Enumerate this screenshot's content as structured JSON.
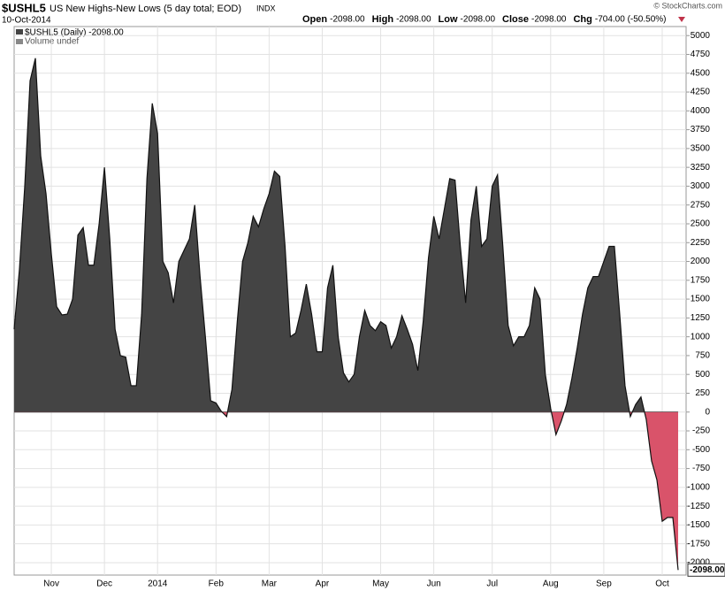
{
  "chart_data": {
    "type": "area",
    "symbol": "$USHL5",
    "title": "US New Highs-New Lows (5 day total; EOD)",
    "exchange": "INDX",
    "date": "10-Oct-2014",
    "quote": [
      {
        "label": "Open",
        "value": "-2098.00"
      },
      {
        "label": "High",
        "value": "-2098.00"
      },
      {
        "label": "Low",
        "value": "-2098.00"
      },
      {
        "label": "Close",
        "value": "-2098.00"
      },
      {
        "label": "Chg",
        "value": "-704.00 (-50.50%)"
      }
    ],
    "source": "© StockCharts.com",
    "legend": [
      "$USHL5 (Daily) -2098.00",
      "Volume undef"
    ],
    "last_label": "-2098.00",
    "categories": [
      null,
      null,
      null,
      null,
      null,
      null,
      null,
      "Nov",
      null,
      null,
      null,
      null,
      null,
      null,
      null,
      null,
      null,
      "Dec",
      null,
      null,
      null,
      null,
      null,
      null,
      null,
      null,
      null,
      "2014",
      null,
      null,
      null,
      null,
      null,
      null,
      null,
      null,
      null,
      null,
      "Feb",
      null,
      null,
      null,
      null,
      null,
      null,
      null,
      null,
      null,
      "Mar",
      null,
      null,
      null,
      null,
      null,
      null,
      null,
      null,
      null,
      "Apr",
      null,
      null,
      null,
      null,
      null,
      null,
      null,
      null,
      null,
      null,
      "May",
      null,
      null,
      null,
      null,
      null,
      null,
      null,
      null,
      null,
      "Jun",
      null,
      null,
      null,
      null,
      null,
      null,
      null,
      null,
      null,
      null,
      "Jul",
      null,
      null,
      null,
      null,
      null,
      null,
      null,
      null,
      null,
      null,
      "Aug",
      null,
      null,
      null,
      null,
      null,
      null,
      null,
      null,
      null,
      "Sep",
      null,
      null,
      null,
      null,
      null,
      null,
      null,
      null,
      null,
      null,
      "Oct",
      null,
      null,
      null
    ],
    "series": [
      {
        "name": "$USHL5",
        "color": "#444444",
        "negative_color": "#d9536a",
        "values": [
          1100,
          1900,
          3000,
          4400,
          4700,
          3400,
          2900,
          2100,
          1400,
          1290,
          1300,
          1500,
          2350,
          2450,
          1950,
          1950,
          2500,
          3250,
          2300,
          1100,
          750,
          730,
          350,
          350,
          1300,
          3100,
          4100,
          3700,
          2000,
          1850,
          1450,
          2000,
          2150,
          2300,
          2750,
          1800,
          1000,
          150,
          120,
          10,
          -60,
          300,
          1200,
          2000,
          2250,
          2600,
          2460,
          2700,
          2900,
          3200,
          3130,
          2200,
          1000,
          1050,
          1350,
          1700,
          1300,
          800,
          800,
          1650,
          1950,
          1000,
          520,
          400,
          500,
          1000,
          1350,
          1150,
          1080,
          1200,
          1150,
          850,
          1000,
          1280,
          1100,
          900,
          550,
          1200,
          2050,
          2600,
          2300,
          2700,
          3100,
          3080,
          2200,
          1450,
          2550,
          3000,
          2200,
          2300,
          3000,
          3150,
          2200,
          1150,
          880,
          1000,
          1000,
          1150,
          1650,
          1500,
          500,
          50,
          -300,
          -120,
          100,
          450,
          850,
          1300,
          1650,
          1800,
          1800,
          2000,
          2200,
          2200,
          1300,
          350,
          -60,
          100,
          200,
          -100,
          -650,
          -900,
          -1450,
          -1400,
          -1400,
          -2098
        ]
      }
    ],
    "ylim": [
      -2165,
      5120
    ],
    "yticks": [
      5000,
      4750,
      4500,
      4250,
      4000,
      3750,
      3500,
      3250,
      3000,
      2750,
      2500,
      2250,
      2000,
      1750,
      1500,
      1250,
      1000,
      750,
      500,
      250,
      0,
      -250,
      -500,
      -750,
      -1000,
      -1250,
      -1500,
      -1750,
      -2000
    ],
    "grid": true
  }
}
